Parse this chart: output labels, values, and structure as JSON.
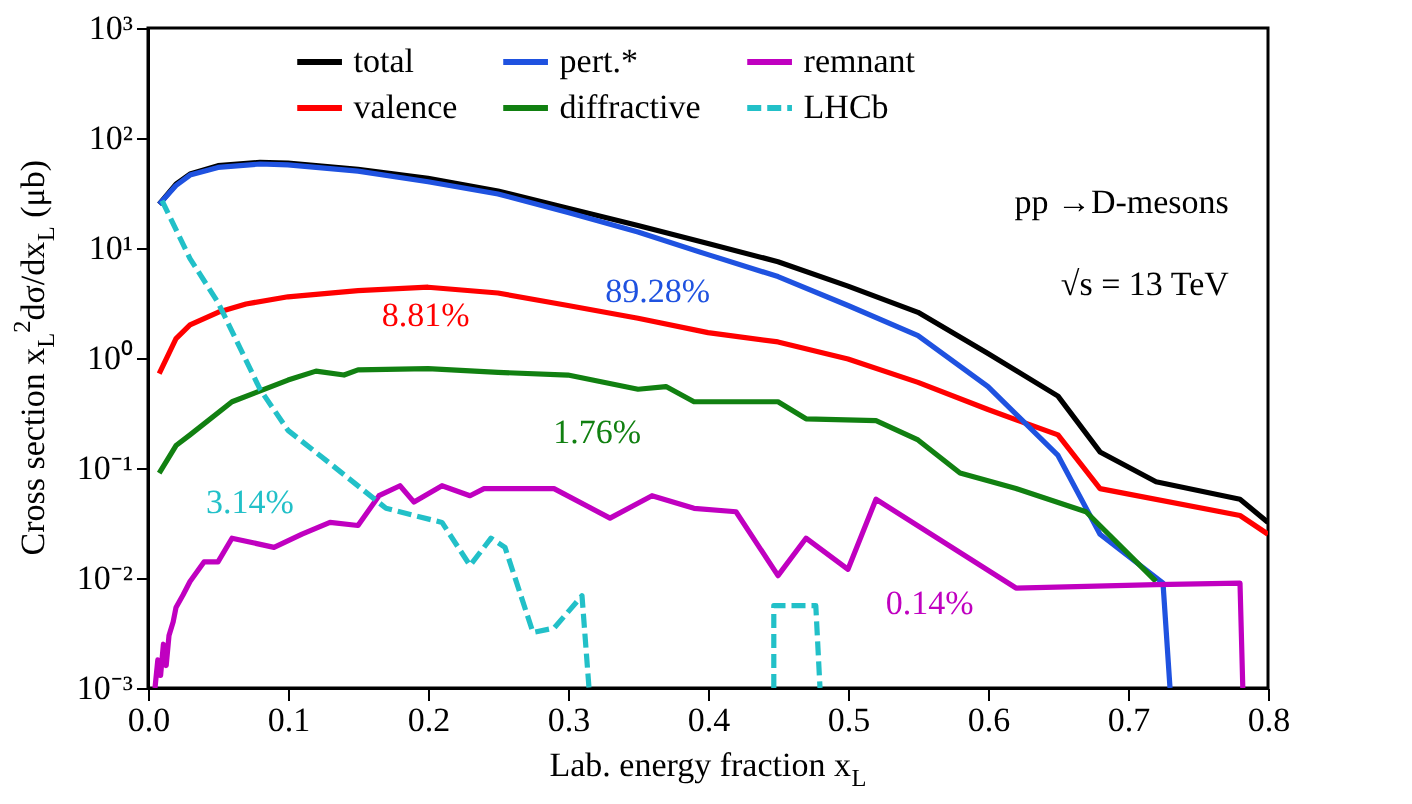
{
  "chart_data": {
    "type": "line",
    "xlabel": "Lab. energy fraction x$_{L}$",
    "ylabel": "Cross section x$_{L}$$^{2}$dσ/dx$_{L}$ (μb)",
    "log": "y",
    "grid": false,
    "legend": "top",
    "marker": "none",
    "xlim": [
      0,
      0.8
    ],
    "xticks": [
      {
        "value": 0,
        "label": "0.0"
      },
      0.1,
      0.2,
      0.3,
      0.4,
      0.5,
      0.6,
      0.7,
      0.8
    ],
    "ylim": [
      0.001,
      1000
    ],
    "yticks": [
      {
        "value": 0.001,
        "label": "10⁻³"
      },
      {
        "value": 0.01,
        "label": "10⁻²"
      },
      {
        "value": 0.1,
        "label": "10⁻¹"
      },
      {
        "value": 1,
        "label": "10⁰"
      },
      {
        "value": 10,
        "label": "10¹"
      },
      {
        "value": 100,
        "label": "10²"
      },
      {
        "value": 1000,
        "label": "10³"
      }
    ],
    "series": [
      {
        "name": "total",
        "color": "#000000",
        "line_style": "solid",
        "x": [
          0.008,
          0.02,
          0.03,
          0.05,
          0.08,
          0.1,
          0.15,
          0.2,
          0.25,
          0.3,
          0.35,
          0.4,
          0.45,
          0.5,
          0.55,
          0.6,
          0.65,
          0.68,
          0.72,
          0.78,
          0.8
        ],
        "values": [
          25,
          38,
          47,
          56,
          60,
          59,
          52,
          43,
          33,
          23,
          16,
          11,
          7.5,
          4.5,
          2.6,
          1.1,
          0.45,
          0.14,
          0.075,
          0.052,
          0.032
        ]
      },
      {
        "name": "valence",
        "color": "#ff0000",
        "line_style": "solid",
        "x": [
          0.008,
          0.02,
          0.03,
          0.05,
          0.07,
          0.1,
          0.15,
          0.2,
          0.25,
          0.3,
          0.35,
          0.4,
          0.45,
          0.5,
          0.55,
          0.6,
          0.65,
          0.68,
          0.78,
          0.8
        ],
        "values": [
          0.72,
          1.5,
          2.0,
          2.6,
          3.1,
          3.6,
          4.1,
          4.4,
          3.9,
          3.0,
          2.3,
          1.7,
          1.4,
          0.98,
          0.6,
          0.34,
          0.2,
          0.065,
          0.037,
          0.025
        ]
      },
      {
        "name": "pert.*",
        "color": "#1f52e0",
        "line_style": "solid",
        "x": [
          0.008,
          0.02,
          0.03,
          0.05,
          0.08,
          0.1,
          0.15,
          0.2,
          0.25,
          0.3,
          0.35,
          0.4,
          0.45,
          0.5,
          0.55,
          0.6,
          0.65,
          0.68,
          0.725,
          0.73
        ],
        "values": [
          25,
          37,
          46,
          54,
          58,
          57,
          50,
          40,
          31,
          21,
          14,
          8.7,
          5.5,
          3.0,
          1.6,
          0.55,
          0.13,
          0.025,
          0.009,
          0.001
        ]
      },
      {
        "name": "diffractive",
        "color": "#118011",
        "line_style": "solid",
        "x": [
          0.008,
          0.02,
          0.03,
          0.06,
          0.1,
          0.12,
          0.14,
          0.15,
          0.2,
          0.25,
          0.3,
          0.35,
          0.37,
          0.39,
          0.42,
          0.45,
          0.47,
          0.52,
          0.55,
          0.58,
          0.62,
          0.67,
          0.72
        ],
        "values": [
          0.09,
          0.16,
          0.2,
          0.4,
          0.63,
          0.76,
          0.7,
          0.78,
          0.8,
          0.74,
          0.7,
          0.52,
          0.55,
          0.4,
          0.4,
          0.4,
          0.28,
          0.27,
          0.18,
          0.09,
          0.065,
          0.04,
          0.0093
        ]
      },
      {
        "name": "remnant",
        "color": "#c000c0",
        "line_style": "solid",
        "x": [
          0.005,
          0.007,
          0.009,
          0.011,
          0.013,
          0.015,
          0.018,
          0.02,
          0.025,
          0.03,
          0.04,
          0.05,
          0.06,
          0.09,
          0.11,
          0.13,
          0.15,
          0.165,
          0.18,
          0.19,
          0.21,
          0.23,
          0.24,
          0.29,
          0.33,
          0.36,
          0.39,
          0.42,
          0.45,
          0.47,
          0.5,
          0.52,
          0.62,
          0.72,
          0.78,
          0.782
        ],
        "values": [
          0.001,
          0.0018,
          0.0013,
          0.0025,
          0.0016,
          0.003,
          0.004,
          0.0054,
          0.007,
          0.0093,
          0.014,
          0.014,
          0.023,
          0.019,
          0.025,
          0.032,
          0.03,
          0.056,
          0.069,
          0.049,
          0.069,
          0.056,
          0.065,
          0.065,
          0.035,
          0.056,
          0.043,
          0.04,
          0.0105,
          0.023,
          0.012,
          0.052,
          0.0081,
          0.0087,
          0.009,
          0.001
        ]
      },
      {
        "name": "LHCb",
        "color": "#22c0c8",
        "line_style": "dashed",
        "x": [
          0.01,
          0.03,
          0.05,
          0.08,
          0.1,
          0.13,
          0.17,
          0.19,
          0.21,
          0.23,
          0.245,
          0.255,
          0.275,
          0.29,
          0.31,
          0.315,
          0.38,
          0.447,
          0.447,
          0.477,
          0.48
        ],
        "values": [
          27,
          8,
          3.2,
          0.52,
          0.22,
          0.11,
          0.043,
          0.037,
          0.032,
          0.013,
          0.023,
          0.019,
          0.0032,
          0.0035,
          0.0069,
          0.001,
          null,
          0.001,
          0.0056,
          0.0056,
          0.001
        ]
      }
    ],
    "annotations": [
      "89.28%",
      "8.81%",
      "1.76%",
      "3.14%",
      "0.14%",
      "pp →D-mesons",
      "√s = 13 TeV"
    ]
  }
}
